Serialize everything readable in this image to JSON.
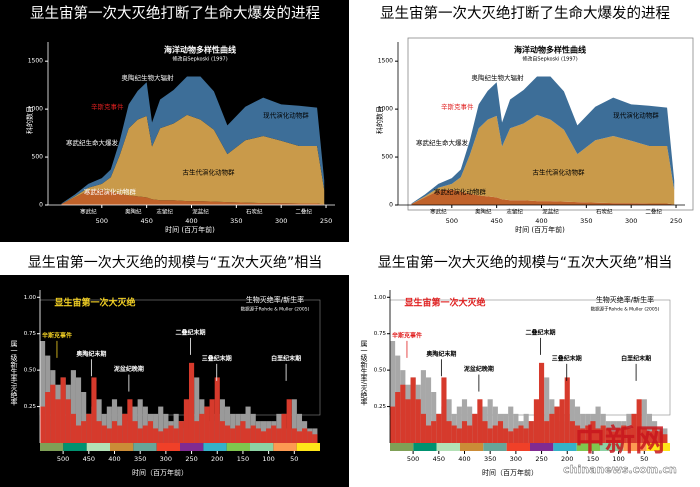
{
  "chart_data": [
    {
      "type": "area",
      "theme": "dark",
      "title": "显生宙第一次大灭绝打断了生命大爆发的进程",
      "chart_title": "海洋动物多样性曲线",
      "subtitle": "修改自Sepkoski (1997)",
      "y_label": "科的数目",
      "x_label": "时间 (百万年前)",
      "x": [
        545,
        530,
        515,
        500,
        490,
        480,
        470,
        460,
        450,
        444,
        435,
        420,
        405,
        390,
        375,
        360,
        340,
        320,
        300,
        280,
        260,
        252
      ],
      "series": [
        {
          "color": "#c0622a",
          "values": [
            10,
            80,
            150,
            160,
            140,
            120,
            100,
            90,
            80,
            60,
            50,
            50,
            40,
            40,
            35,
            30,
            25,
            20,
            20,
            15,
            15,
            5
          ]
        },
        {
          "color": "#c99a4a",
          "values": [
            0,
            10,
            30,
            60,
            150,
            400,
            700,
            800,
            850,
            550,
            750,
            800,
            900,
            850,
            750,
            500,
            650,
            700,
            650,
            600,
            600,
            150
          ]
        },
        {
          "color": "#3d6e98",
          "values": [
            5,
            20,
            40,
            60,
            80,
            150,
            250,
            300,
            350,
            250,
            300,
            350,
            400,
            450,
            400,
            300,
            350,
            400,
            380,
            420,
            400,
            100
          ]
        }
      ],
      "xlim": [
        560,
        240
      ],
      "xticks": [
        500,
        450,
        400,
        350,
        300,
        250
      ],
      "ylim": [
        0,
        1700
      ],
      "yticks": [
        0,
        500,
        1000,
        1500
      ],
      "periods": [
        {
          "label": "寒武纪",
          "x": 515
        },
        {
          "label": "奥陶纪",
          "x": 465
        },
        {
          "label": "志留纪",
          "x": 430
        },
        {
          "label": "泥盆纪",
          "x": 390
        },
        {
          "label": "石炭纪",
          "x": 330
        },
        {
          "label": "二叠纪",
          "x": 275
        }
      ],
      "annotations": [
        {
          "text": "寒武纪生命大爆发",
          "x": 540
        },
        {
          "text": "辛斯克事件",
          "x": 512,
          "color": "#e02020"
        },
        {
          "text": "奥陶纪生物大辐射",
          "x": 478
        },
        {
          "text": "寒武纪演化动物群",
          "x": 520
        },
        {
          "text": "古生代演化动物群",
          "x": 410,
          "color": "#000000"
        },
        {
          "text": "现代演化动物群",
          "x": 320,
          "color": "#000000"
        }
      ]
    },
    {
      "type": "area",
      "theme": "light",
      "title": "显生宙第一次大灭绝打断了生命大爆发的进程",
      "chart_title": "海洋动物多样性曲线",
      "subtitle": "修改自Sepkoski (1997)",
      "y_label": "科的数目",
      "x_label": "时间 (百万年前)",
      "x": [
        545,
        530,
        515,
        500,
        490,
        480,
        470,
        460,
        450,
        444,
        435,
        420,
        405,
        390,
        375,
        360,
        340,
        320,
        300,
        280,
        260,
        252
      ],
      "series": [
        {
          "color": "#c0622a",
          "values": [
            10,
            80,
            150,
            160,
            140,
            120,
            100,
            90,
            80,
            60,
            50,
            50,
            40,
            40,
            35,
            30,
            25,
            20,
            20,
            15,
            15,
            5
          ]
        },
        {
          "color": "#c99a4a",
          "values": [
            0,
            10,
            30,
            60,
            150,
            400,
            700,
            800,
            850,
            550,
            750,
            800,
            900,
            850,
            750,
            500,
            650,
            700,
            650,
            600,
            600,
            150
          ]
        },
        {
          "color": "#3d6e98",
          "values": [
            5,
            20,
            40,
            60,
            80,
            150,
            250,
            300,
            350,
            250,
            300,
            350,
            400,
            450,
            400,
            300,
            350,
            400,
            380,
            420,
            400,
            100
          ]
        }
      ],
      "xlim": [
        560,
        240
      ],
      "xticks": [
        500,
        450,
        400,
        350,
        300,
        250
      ],
      "ylim": [
        0,
        1700
      ],
      "yticks": [
        0,
        500,
        1000,
        1500
      ],
      "periods": [
        {
          "label": "寒武纪",
          "x": 515
        },
        {
          "label": "奥陶纪",
          "x": 465
        },
        {
          "label": "志留纪",
          "x": 430
        },
        {
          "label": "泥盆纪",
          "x": 390
        },
        {
          "label": "石炭纪",
          "x": 330
        },
        {
          "label": "二叠纪",
          "x": 275
        }
      ],
      "annotations": [
        {
          "text": "寒武纪生命大爆发",
          "x": 540
        },
        {
          "text": "辛斯克事件",
          "x": 512,
          "color": "#e02020"
        },
        {
          "text": "奥陶纪生物大辐射",
          "x": 478
        },
        {
          "text": "寒武纪演化动物群",
          "x": 520
        },
        {
          "text": "古生代演化动物群",
          "x": 410,
          "color": "#000000"
        },
        {
          "text": "现代演化动物群",
          "x": 320,
          "color": "#000000"
        }
      ]
    },
    {
      "type": "bar",
      "theme": "dark",
      "title": "显生宙第一次大灭绝的规模与“五次大灭绝”相当",
      "chart_title": "显生宙第一次大灭绝",
      "chart_title_color": "#f2d024",
      "legend_title": "生物灭绝率/新生率",
      "source": "数据源于Rohde & Muller (2005)",
      "y_label": "属一级新生率/灭绝率",
      "x_label": "时间（百万年前）",
      "x": [
        540,
        530,
        520,
        510,
        500,
        490,
        480,
        470,
        460,
        450,
        440,
        430,
        420,
        410,
        400,
        390,
        380,
        370,
        360,
        350,
        340,
        330,
        320,
        310,
        300,
        290,
        280,
        270,
        260,
        250,
        240,
        230,
        220,
        210,
        200,
        190,
        180,
        170,
        160,
        150,
        140,
        130,
        120,
        110,
        100,
        90,
        80,
        70,
        60,
        50,
        40,
        30,
        20,
        10
      ],
      "series": [
        {
          "color": "#d63a2c",
          "values": [
            0.25,
            0.35,
            0.4,
            0.3,
            0.45,
            0.3,
            0.2,
            0.12,
            0.15,
            0.2,
            0.45,
            0.15,
            0.12,
            0.1,
            0.15,
            0.12,
            0.2,
            0.3,
            0.15,
            0.1,
            0.12,
            0.15,
            0.1,
            0.08,
            0.1,
            0.12,
            0.1,
            0.15,
            0.3,
            0.55,
            0.15,
            0.2,
            0.25,
            0.3,
            0.45,
            0.15,
            0.12,
            0.1,
            0.12,
            0.15,
            0.1,
            0.12,
            0.1,
            0.08,
            0.1,
            0.12,
            0.1,
            0.2,
            0.3,
            0.1,
            0.08,
            0.1,
            0.08,
            0.06
          ]
        },
        {
          "color": "#9a9a9a",
          "values": [
            0.7,
            0.6,
            0.5,
            0.4,
            0.45,
            0.4,
            0.5,
            0.45,
            0.35,
            0.2,
            0.25,
            0.3,
            0.2,
            0.25,
            0.3,
            0.25,
            0.2,
            0.15,
            0.25,
            0.3,
            0.25,
            0.2,
            0.2,
            0.25,
            0.2,
            0.15,
            0.2,
            0.15,
            0.1,
            0.2,
            0.45,
            0.3,
            0.25,
            0.15,
            0.2,
            0.3,
            0.25,
            0.2,
            0.2,
            0.2,
            0.25,
            0.2,
            0.15,
            0.15,
            0.15,
            0.15,
            0.2,
            0.2,
            0.1,
            0.3,
            0.2,
            0.15,
            0.1,
            0.1
          ]
        }
      ],
      "xlim": [
        545,
        0
      ],
      "xticks": [
        500,
        450,
        400,
        350,
        300,
        250,
        200,
        150,
        100,
        50
      ],
      "ylim": [
        0,
        1.05
      ],
      "yticks": [
        0.25,
        {
          "value": 0.5,
          "label": "0.50"
        },
        0.75,
        {
          "value": 1,
          "label": "1.00"
        }
      ],
      "annotations": [
        {
          "text": "辛斯克事件",
          "x": 512,
          "color": "#f2d024"
        },
        {
          "text": "奥陶纪末期",
          "x": 445
        },
        {
          "text": "泥盆纪晚期",
          "x": 372
        },
        {
          "text": "二叠纪末期",
          "x": 252
        },
        {
          "text": "三叠纪末期",
          "x": 201
        },
        {
          "text": "白垩纪末期",
          "x": 66
        }
      ]
    },
    {
      "type": "bar",
      "theme": "light",
      "title": "显生宙第一次大灭绝的规模与“五次大灭绝”相当",
      "chart_title": "显生宙第一次大灭绝",
      "chart_title_color": "#e02020",
      "legend_title": "生物灭绝率/新生率",
      "source": "数据源于Rohde & Muller (2005)",
      "y_label": "属一级新生率/灭绝率",
      "x_label": "时间（百万年前）",
      "x": [
        540,
        530,
        520,
        510,
        500,
        490,
        480,
        470,
        460,
        450,
        440,
        430,
        420,
        410,
        400,
        390,
        380,
        370,
        360,
        350,
        340,
        330,
        320,
        310,
        300,
        290,
        280,
        270,
        260,
        250,
        240,
        230,
        220,
        210,
        200,
        190,
        180,
        170,
        160,
        150,
        140,
        130,
        120,
        110,
        100,
        90,
        80,
        70,
        60,
        50,
        40,
        30,
        20,
        10
      ],
      "series": [
        {
          "color": "#d63a2c",
          "values": [
            0.25,
            0.35,
            0.4,
            0.3,
            0.45,
            0.3,
            0.2,
            0.12,
            0.15,
            0.2,
            0.45,
            0.15,
            0.12,
            0.1,
            0.15,
            0.12,
            0.2,
            0.3,
            0.15,
            0.1,
            0.12,
            0.15,
            0.1,
            0.08,
            0.1,
            0.12,
            0.1,
            0.15,
            0.3,
            0.55,
            0.15,
            0.2,
            0.25,
            0.3,
            0.45,
            0.15,
            0.12,
            0.1,
            0.12,
            0.15,
            0.1,
            0.12,
            0.1,
            0.08,
            0.1,
            0.12,
            0.1,
            0.2,
            0.3,
            0.1,
            0.08,
            0.1,
            0.08,
            0.06
          ]
        },
        {
          "color": "#a8a8a8",
          "values": [
            0.7,
            0.6,
            0.5,
            0.4,
            0.45,
            0.4,
            0.5,
            0.45,
            0.35,
            0.2,
            0.25,
            0.3,
            0.2,
            0.25,
            0.3,
            0.25,
            0.2,
            0.15,
            0.25,
            0.3,
            0.25,
            0.2,
            0.2,
            0.25,
            0.2,
            0.15,
            0.2,
            0.15,
            0.1,
            0.2,
            0.45,
            0.3,
            0.25,
            0.15,
            0.2,
            0.3,
            0.25,
            0.2,
            0.2,
            0.2,
            0.25,
            0.2,
            0.15,
            0.15,
            0.15,
            0.15,
            0.2,
            0.2,
            0.1,
            0.3,
            0.2,
            0.15,
            0.1,
            0.1
          ]
        }
      ],
      "xlim": [
        545,
        0
      ],
      "xticks": [
        500,
        450,
        400,
        350,
        300,
        250,
        200,
        150,
        100,
        50
      ],
      "ylim": [
        0,
        1.05
      ],
      "yticks": [
        0.25,
        {
          "value": 0.5,
          "label": "0.50"
        },
        0.75,
        {
          "value": 1,
          "label": "1.00"
        }
      ],
      "annotations": [
        {
          "text": "辛斯克事件",
          "x": 512,
          "color": "#e02020"
        },
        {
          "text": "奥陶纪末期",
          "x": 445
        },
        {
          "text": "泥盆纪晚期",
          "x": 372
        },
        {
          "text": "二叠纪末期",
          "x": 252
        },
        {
          "text": "三叠纪末期",
          "x": 201
        },
        {
          "text": "白垩纪末期",
          "x": 66
        }
      ]
    }
  ],
  "watermark": {
    "logo": "中新网",
    "url": "chinanews.com.cn"
  }
}
